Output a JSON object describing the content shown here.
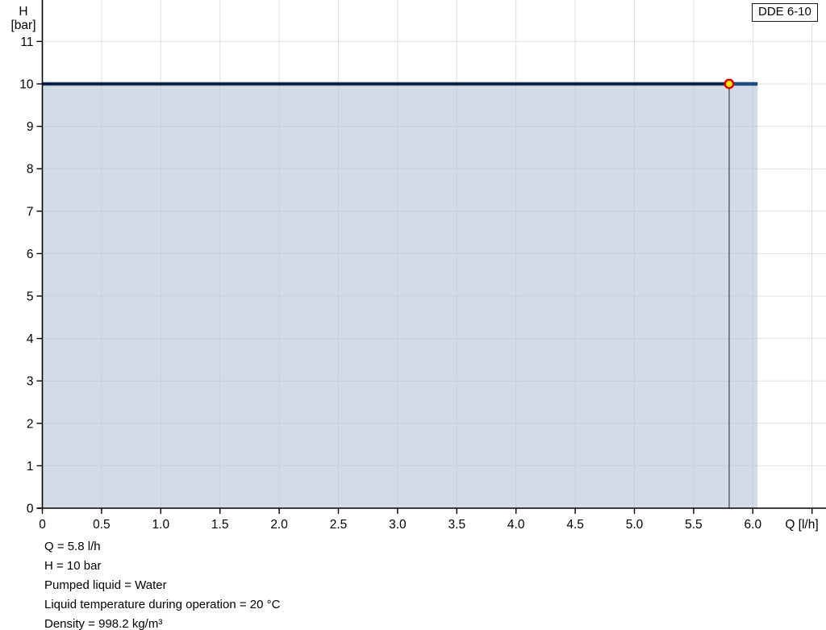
{
  "legend_box": {
    "label": "DDE 6-10"
  },
  "chart_data": {
    "type": "line",
    "title": "DDE 6-10",
    "xlabel": "Q [l/h]",
    "ylabel_line1": "H",
    "ylabel_line2": "[bar]",
    "xlim": [
      0,
      6.62
    ],
    "ylim": [
      0,
      12
    ],
    "grid": true,
    "x_ticks": [
      {
        "v": 0,
        "label": "0"
      },
      {
        "v": 0.5,
        "label": "0.5"
      },
      {
        "v": 1.0,
        "label": "1.0"
      },
      {
        "v": 1.5,
        "label": "1.5"
      },
      {
        "v": 2.0,
        "label": "2.0"
      },
      {
        "v": 2.5,
        "label": "2.5"
      },
      {
        "v": 3.0,
        "label": "3.0"
      },
      {
        "v": 3.5,
        "label": "3.5"
      },
      {
        "v": 4.0,
        "label": "4.0"
      },
      {
        "v": 4.5,
        "label": "4.5"
      },
      {
        "v": 5.0,
        "label": "5.0"
      },
      {
        "v": 5.5,
        "label": "5.5"
      },
      {
        "v": 6.0,
        "label": "6.0"
      },
      {
        "v": 6.5,
        "label": ""
      }
    ],
    "y_ticks": [
      {
        "v": 0,
        "label": "0"
      },
      {
        "v": 1,
        "label": "1"
      },
      {
        "v": 2,
        "label": "2"
      },
      {
        "v": 3,
        "label": "3"
      },
      {
        "v": 4,
        "label": "4"
      },
      {
        "v": 5,
        "label": "5"
      },
      {
        "v": 6,
        "label": "6"
      },
      {
        "v": 7,
        "label": "7"
      },
      {
        "v": 8,
        "label": "8"
      },
      {
        "v": 9,
        "label": "9"
      },
      {
        "v": 10,
        "label": "10"
      },
      {
        "v": 11,
        "label": "11"
      }
    ],
    "series": [
      {
        "name": "DDE 6-10 pressure curve",
        "x": [
          0,
          6.04
        ],
        "y": [
          10,
          10
        ],
        "color": "#1d4e7f",
        "area_fill": "rgba(182,198,216,0.62)"
      }
    ],
    "operating_point": {
      "q": 5.8,
      "h": 10,
      "marker_fill": "#ffe800",
      "marker_stroke": "#e10000",
      "h_line_color": "#000000",
      "v_line_color": "#51627a"
    },
    "grid_color": "#e0e0e0",
    "axis_color": "#000000"
  },
  "info_panel": {
    "lines": [
      "Q = 5.8 l/h",
      "H = 10 bar",
      "Pumped liquid = Water",
      "Liquid temperature during operation = 20 °C",
      "Density = 998.2 kg/m³"
    ]
  }
}
